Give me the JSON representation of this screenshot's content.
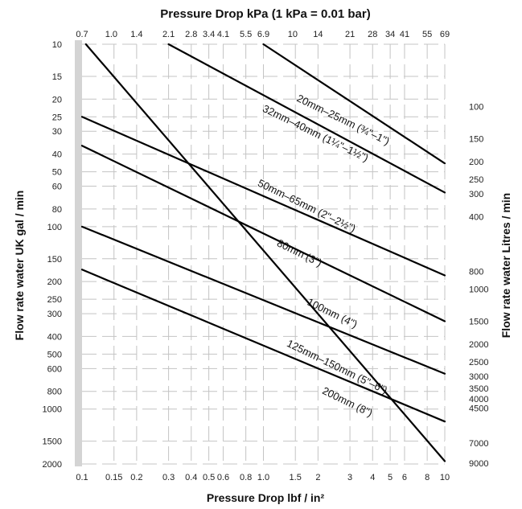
{
  "chart_data": {
    "type": "line",
    "title": "Pressure Drop kPa (1 kPa = 0.01 bar)",
    "xlabel": "Pressure Drop lbf / in²",
    "ylabel_left": "Flow rate water UK gal / min",
    "ylabel_right": "Flow rate water Litres / min",
    "x_scale": "log",
    "y_scale": "log",
    "y_inverted": true,
    "xlim": [
      0.1,
      10
    ],
    "ylim": [
      10,
      2000
    ],
    "grid": true,
    "legend": "none",
    "x_ticks_bottom": [
      {
        "value": 0.1,
        "label": "0.1"
      },
      {
        "value": 0.15,
        "label": "0.15"
      },
      {
        "value": 0.2,
        "label": "0.2"
      },
      {
        "value": 0.3,
        "label": "0.3"
      },
      {
        "value": 0.4,
        "label": "0.4"
      },
      {
        "value": 0.5,
        "label": "0.5"
      },
      {
        "value": 0.6,
        "label": "0.6"
      },
      {
        "value": 0.8,
        "label": "0.8"
      },
      {
        "value": 1.0,
        "label": "1.0"
      },
      {
        "value": 1.5,
        "label": "1.5"
      },
      {
        "value": 2,
        "label": "2"
      },
      {
        "value": 3,
        "label": "3"
      },
      {
        "value": 4,
        "label": "4"
      },
      {
        "value": 5,
        "label": "5"
      },
      {
        "value": 6,
        "label": "6"
      },
      {
        "value": 8,
        "label": "8"
      },
      {
        "value": 10,
        "label": "10"
      }
    ],
    "x_ticks_top": [
      {
        "value": 0.1,
        "label": "0.7"
      },
      {
        "value": 0.145,
        "label": "1.0"
      },
      {
        "value": 0.2,
        "label": "1.4"
      },
      {
        "value": 0.3,
        "label": "2.1"
      },
      {
        "value": 0.4,
        "label": "2.8"
      },
      {
        "value": 0.5,
        "label": "3.4"
      },
      {
        "value": 0.6,
        "label": "4.1"
      },
      {
        "value": 0.8,
        "label": "5.5"
      },
      {
        "value": 1.0,
        "label": "6.9"
      },
      {
        "value": 1.45,
        "label": "10"
      },
      {
        "value": 2,
        "label": "14"
      },
      {
        "value": 3,
        "label": "21"
      },
      {
        "value": 4,
        "label": "28"
      },
      {
        "value": 5,
        "label": "34"
      },
      {
        "value": 6,
        "label": "41"
      },
      {
        "value": 8,
        "label": "55"
      },
      {
        "value": 10,
        "label": "69"
      }
    ],
    "y_ticks_left": [
      {
        "value": 10,
        "label": "10"
      },
      {
        "value": 15,
        "label": "15"
      },
      {
        "value": 20,
        "label": "20"
      },
      {
        "value": 25,
        "label": "25"
      },
      {
        "value": 30,
        "label": "30"
      },
      {
        "value": 40,
        "label": "40"
      },
      {
        "value": 50,
        "label": "50"
      },
      {
        "value": 60,
        "label": "60"
      },
      {
        "value": 80,
        "label": "80"
      },
      {
        "value": 100,
        "label": "100"
      },
      {
        "value": 150,
        "label": "150"
      },
      {
        "value": 200,
        "label": "200"
      },
      {
        "value": 250,
        "label": "250"
      },
      {
        "value": 300,
        "label": "300"
      },
      {
        "value": 400,
        "label": "400"
      },
      {
        "value": 500,
        "label": "500"
      },
      {
        "value": 600,
        "label": "600"
      },
      {
        "value": 800,
        "label": "800"
      },
      {
        "value": 1000,
        "label": "1000"
      },
      {
        "value": 1500,
        "label": "1500"
      },
      {
        "value": 2000,
        "label": "2000"
      }
    ],
    "y_ticks_right": [
      {
        "value": 22,
        "label": "100"
      },
      {
        "value": 33,
        "label": "150"
      },
      {
        "value": 44,
        "label": "200"
      },
      {
        "value": 55,
        "label": "250"
      },
      {
        "value": 66,
        "label": "300"
      },
      {
        "value": 88,
        "label": "400"
      },
      {
        "value": 176,
        "label": "800"
      },
      {
        "value": 220,
        "label": "1000"
      },
      {
        "value": 330,
        "label": "1500"
      },
      {
        "value": 440,
        "label": "2000"
      },
      {
        "value": 550,
        "label": "2500"
      },
      {
        "value": 660,
        "label": "3000"
      },
      {
        "value": 770,
        "label": "3500"
      },
      {
        "value": 880,
        "label": "4000"
      },
      {
        "value": 990,
        "label": "4500"
      },
      {
        "value": 1540,
        "label": "7000"
      },
      {
        "value": 1980,
        "label": "9000"
      }
    ],
    "series": [
      {
        "name": "20mm–25mm (¾\"–1\")",
        "points": [
          [
            1.0,
            10
          ],
          [
            10,
            45
          ]
        ],
        "label_at": [
          2.7,
          27
        ],
        "label_angle": 26
      },
      {
        "name": "32mm–40mm (1¼\"–1½\")",
        "points": [
          [
            0.3,
            10
          ],
          [
            10,
            65
          ]
        ],
        "label_at": [
          1.9,
          32
        ],
        "label_angle": 26
      },
      {
        "name": "50mm–65mm (2\"–2½\")",
        "points": [
          [
            0.1,
            25
          ],
          [
            10,
            185
          ]
        ],
        "label_at": [
          1.7,
          80
        ],
        "label_angle": 26
      },
      {
        "name": "80mm (3\")",
        "points": [
          [
            0.1,
            36
          ],
          [
            10,
            330
          ]
        ],
        "label_at": [
          1.55,
          145
        ],
        "label_angle": 26
      },
      {
        "name": "100mm (4\")",
        "points": [
          [
            0.1,
            100
          ],
          [
            10,
            640
          ]
        ],
        "label_at": [
          2.35,
          310
        ],
        "label_angle": 26
      },
      {
        "name": "125mm–150mm (5\"–6\")",
        "points": [
          [
            0.1,
            172
          ],
          [
            10,
            1170
          ]
        ],
        "label_at": [
          2.5,
          610
        ],
        "label_angle": 26
      },
      {
        "name": "200mm (8\")",
        "points": [
          [
            0.105,
            10
          ],
          [
            10,
            1930
          ]
        ],
        "label_at": [
          2.85,
          950
        ],
        "label_angle": 26
      }
    ]
  }
}
